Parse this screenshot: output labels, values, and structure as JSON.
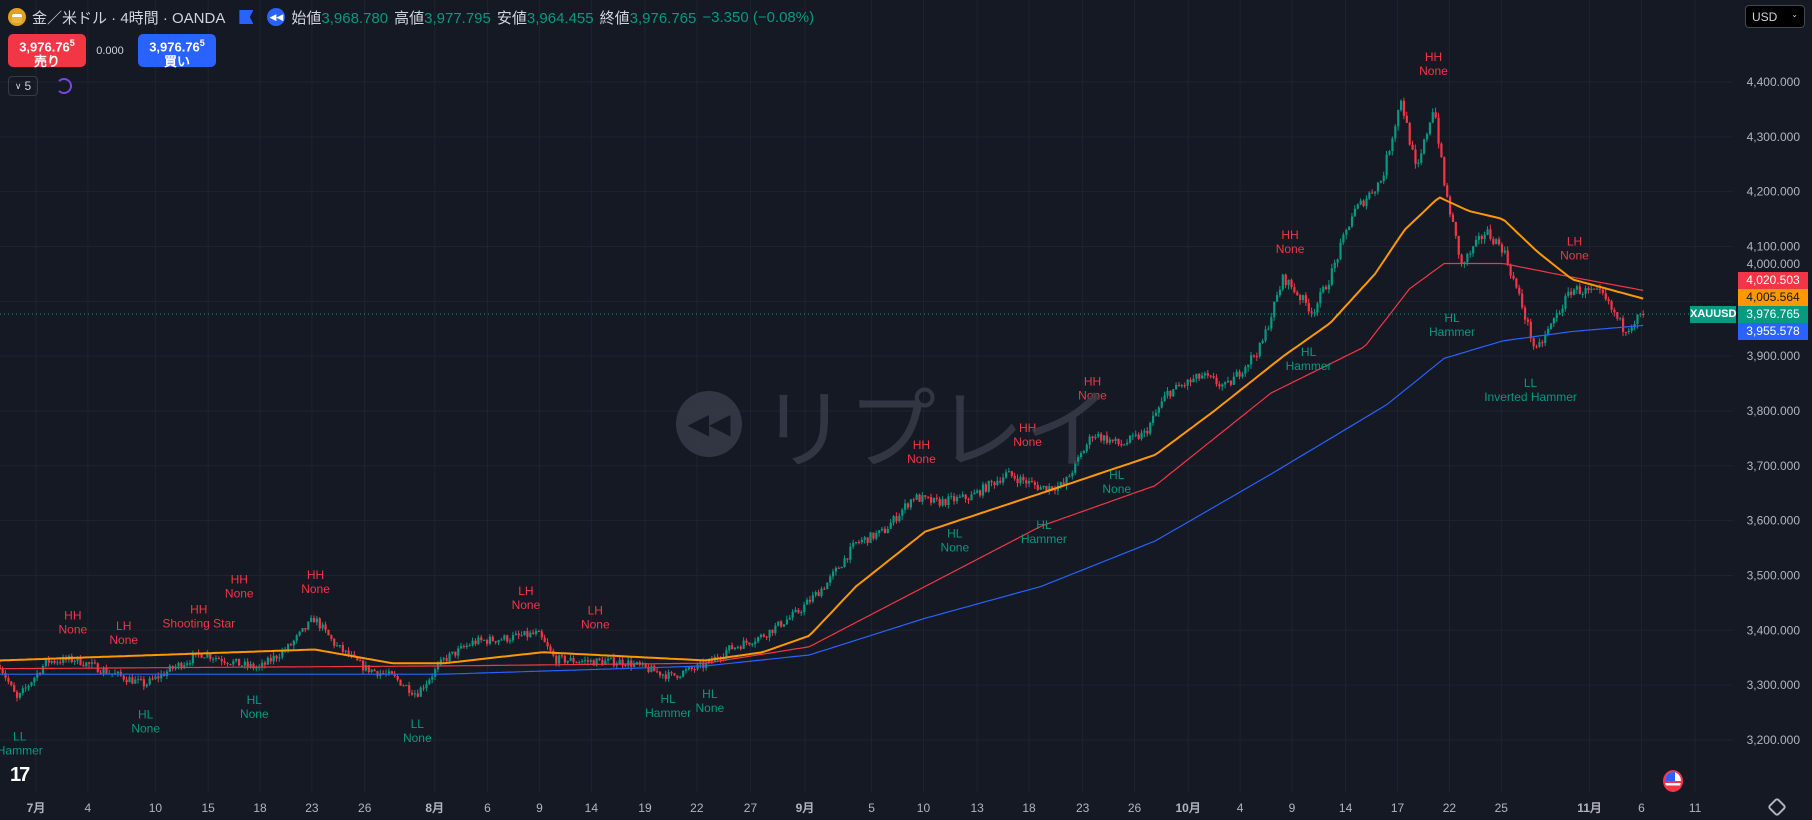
{
  "header": {
    "symbol_title": "金／米ドル · 4時間 · OANDA",
    "open_label": "始値",
    "open": "3,968.780",
    "high_label": "高値",
    "high": "3,977.795",
    "low_label": "安値",
    "low": "3,964.455",
    "close_label": "終値",
    "close": "3,976.765",
    "change": "−3.350 (−0.08%)"
  },
  "trade": {
    "sell_price": "3,976.76",
    "sell_sup": "5",
    "sell_label": "売り",
    "spread": "0.000",
    "buy_price": "3,976.76",
    "buy_sup": "5",
    "buy_label": "買い"
  },
  "indicator_count": "5",
  "currency": "USD",
  "watermark": "リプレイ",
  "price_labels": {
    "ma_red": "4,020.503",
    "ma_orange": "4,005.564",
    "last": "3,976.765",
    "symbol": "XAUUSD",
    "ma_blue": "3,955.578"
  },
  "colors": {
    "up": "#089981",
    "down": "#f23645",
    "ma_fast": "#ff9800",
    "ma_mid": "#f23645",
    "ma_slow": "#2962ff",
    "grid": "#1f2330"
  },
  "chart_data": {
    "type": "candlestick",
    "y_ticks": [
      4400,
      4300,
      4200,
      4100,
      4000,
      3900,
      3800,
      3700,
      3600,
      3500,
      3400,
      3300,
      3200
    ],
    "y_tick_labels": [
      "4,400.000",
      "4,300.000",
      "4,200.000",
      "4,100.000",
      "4,000.000",
      "3,900.000",
      "3,800.000",
      "3,700.000",
      "3,600.000",
      "3,500.000",
      "3,400.000",
      "3,300.000",
      "3,200.000"
    ],
    "x_ticks": [
      {
        "label": "7月",
        "day": 0
      },
      {
        "label": "4",
        "day": 3
      },
      {
        "label": "10",
        "day": 6.9
      },
      {
        "label": "15",
        "day": 9.95
      },
      {
        "label": "18",
        "day": 12.95
      },
      {
        "label": "23",
        "day": 15.95
      },
      {
        "label": "26",
        "day": 19
      },
      {
        "label": "8月",
        "day": 23.05
      },
      {
        "label": "6",
        "day": 26.1
      },
      {
        "label": "9",
        "day": 29.1
      },
      {
        "label": "14",
        "day": 32.1
      },
      {
        "label": "19",
        "day": 35.2
      },
      {
        "label": "22",
        "day": 38.2
      },
      {
        "label": "27",
        "day": 41.3
      },
      {
        "label": "9月",
        "day": 44.45
      },
      {
        "label": "5",
        "day": 48.3
      },
      {
        "label": "10",
        "day": 51.3
      },
      {
        "label": "13",
        "day": 54.4
      },
      {
        "label": "18",
        "day": 57.4
      },
      {
        "label": "23",
        "day": 60.5
      },
      {
        "label": "26",
        "day": 63.5
      },
      {
        "label": "10月",
        "day": 66.6
      },
      {
        "label": "4",
        "day": 69.6
      },
      {
        "label": "9",
        "day": 72.6
      },
      {
        "label": "14",
        "day": 75.7
      },
      {
        "label": "17",
        "day": 78.7
      },
      {
        "label": "22",
        "day": 81.7
      },
      {
        "label": "25",
        "day": 84.7
      },
      {
        "label": "11月",
        "day": 89.8
      },
      {
        "label": "6",
        "day": 92.8
      },
      {
        "label": "11",
        "day": 95.9
      }
    ],
    "price_path": [
      [
        -2.1,
        3337
      ],
      [
        -1.1,
        3274
      ],
      [
        0.6,
        3343
      ],
      [
        2.3,
        3347
      ],
      [
        3.9,
        3327
      ],
      [
        6.3,
        3301
      ],
      [
        7.9,
        3331
      ],
      [
        9.6,
        3358
      ],
      [
        11.9,
        3337
      ],
      [
        12.9,
        3331
      ],
      [
        14.6,
        3369
      ],
      [
        16.1,
        3422
      ],
      [
        17.3,
        3373
      ],
      [
        19.0,
        3331
      ],
      [
        20.6,
        3316
      ],
      [
        22.0,
        3284
      ],
      [
        23.6,
        3347
      ],
      [
        25.3,
        3379
      ],
      [
        27.3,
        3386
      ],
      [
        29.0,
        3394
      ],
      [
        30.0,
        3347
      ],
      [
        32.0,
        3343
      ],
      [
        34.0,
        3343
      ],
      [
        36.7,
        3316
      ],
      [
        38.7,
        3337
      ],
      [
        40.0,
        3365
      ],
      [
        42.0,
        3390
      ],
      [
        44.0,
        3432
      ],
      [
        45.7,
        3485
      ],
      [
        47.4,
        3559
      ],
      [
        49.0,
        3580
      ],
      [
        50.7,
        3643
      ],
      [
        52.0,
        3633
      ],
      [
        54.0,
        3643
      ],
      [
        56.1,
        3685
      ],
      [
        58.1,
        3660
      ],
      [
        59.4,
        3664
      ],
      [
        61.1,
        3759
      ],
      [
        62.7,
        3738
      ],
      [
        64.1,
        3759
      ],
      [
        65.4,
        3833
      ],
      [
        67.4,
        3864
      ],
      [
        68.8,
        3843
      ],
      [
        70.8,
        3917
      ],
      [
        72.1,
        4044
      ],
      [
        73.8,
        3981
      ],
      [
        74.8,
        4044
      ],
      [
        76.1,
        4160
      ],
      [
        77.8,
        4223
      ],
      [
        78.9,
        4370
      ],
      [
        79.8,
        4233
      ],
      [
        80.8,
        4360
      ],
      [
        81.4,
        4212
      ],
      [
        82.4,
        4065
      ],
      [
        83.8,
        4128
      ],
      [
        84.8,
        4096
      ],
      [
        85.8,
        4001
      ],
      [
        86.7,
        3906
      ],
      [
        87.8,
        3970
      ],
      [
        88.8,
        4023
      ],
      [
        90.5,
        4012
      ],
      [
        91.8,
        3949
      ],
      [
        92.9,
        3977
      ]
    ],
    "ma_fast": [
      [
        -2.1,
        3345
      ],
      [
        16.1,
        3365
      ],
      [
        20.6,
        3340
      ],
      [
        23.6,
        3340
      ],
      [
        29.3,
        3360
      ],
      [
        38.7,
        3345
      ],
      [
        42.0,
        3360
      ],
      [
        44.7,
        3390
      ],
      [
        47.4,
        3480
      ],
      [
        51.4,
        3580
      ],
      [
        58.1,
        3650
      ],
      [
        64.7,
        3720
      ],
      [
        68.1,
        3800
      ],
      [
        72.1,
        3900
      ],
      [
        74.8,
        3960
      ],
      [
        77.4,
        4050
      ],
      [
        79.1,
        4130
      ],
      [
        81.1,
        4190
      ],
      [
        82.8,
        4165
      ],
      [
        84.8,
        4150
      ],
      [
        86.8,
        4090
      ],
      [
        88.8,
        4040
      ],
      [
        92.9,
        4005
      ]
    ],
    "ma_mid": [
      [
        -2.1,
        3330
      ],
      [
        23.6,
        3335
      ],
      [
        38.7,
        3340
      ],
      [
        44.7,
        3370
      ],
      [
        51.4,
        3480
      ],
      [
        58.1,
        3590
      ],
      [
        64.7,
        3664
      ],
      [
        71.4,
        3833
      ],
      [
        76.8,
        3917
      ],
      [
        79.4,
        4023
      ],
      [
        81.4,
        4069
      ],
      [
        84.8,
        4069
      ],
      [
        88.8,
        4044
      ],
      [
        92.9,
        4020
      ]
    ],
    "ma_slow": [
      [
        -2.1,
        3320
      ],
      [
        23.6,
        3320
      ],
      [
        38.7,
        3335
      ],
      [
        44.7,
        3355
      ],
      [
        51.4,
        3422
      ],
      [
        58.1,
        3480
      ],
      [
        64.7,
        3563
      ],
      [
        71.4,
        3685
      ],
      [
        78.1,
        3812
      ],
      [
        81.4,
        3896
      ],
      [
        84.8,
        3928
      ],
      [
        88.8,
        3945
      ],
      [
        92.9,
        3956
      ]
    ],
    "last_price": 3976.765,
    "annotations": [
      {
        "l1": "LL",
        "l2": "Hammer",
        "day": -0.94,
        "price": 3206,
        "kind": "low"
      },
      {
        "l1": "HH",
        "l2": "None",
        "day": 2.13,
        "price": 3427,
        "kind": "high"
      },
      {
        "l1": "LH",
        "l2": "None",
        "day": 5.07,
        "price": 3408,
        "kind": "high"
      },
      {
        "l1": "HH",
        "l2": "Shooting Star",
        "day": 9.41,
        "price": 3438,
        "kind": "high"
      },
      {
        "l1": "HH",
        "l2": "None",
        "day": 11.75,
        "price": 3438,
        "kind": "high"
      },
      {
        "l1": "HL",
        "l2": "None",
        "day": 6.34,
        "price": 3246,
        "kind": "low"
      },
      {
        "l1": "HL",
        "l2": "None",
        "day": 12.62,
        "price": 3273,
        "kind": "low"
      },
      {
        "l1": "HH",
        "l2": "None",
        "day": 16.16,
        "price": 3501,
        "kind": "high"
      },
      {
        "l1": "LL",
        "l2": "None",
        "day": 22.04,
        "price": 3229,
        "kind": "low"
      },
      {
        "l1": "LH",
        "l2": "None",
        "day": 28.32,
        "price": 3472,
        "kind": "high"
      },
      {
        "l1": "LH",
        "l2": "None",
        "day": 32.33,
        "price": 3436,
        "kind": "high"
      },
      {
        "l1": "HL",
        "l2": "Hammer",
        "day": 36.54,
        "price": 3275,
        "kind": "low"
      },
      {
        "l1": "HL",
        "l2": "None",
        "day": 38.95,
        "price": 3284,
        "kind": "low"
      },
      {
        "l1": "HH",
        "l2": "None",
        "day": 51.18,
        "price": 3738,
        "kind": "high"
      },
      {
        "l1": "HL",
        "l2": "None",
        "day": 53.11,
        "price": 3577,
        "kind": "low"
      },
      {
        "l1": "HH",
        "l2": "None",
        "day": 57.32,
        "price": 3769,
        "kind": "high"
      },
      {
        "l1": "HL",
        "l2": "Hammer",
        "day": 58.26,
        "price": 3592,
        "kind": "low"
      },
      {
        "l1": "HH",
        "l2": "None",
        "day": 61.07,
        "price": 3854,
        "kind": "high"
      },
      {
        "l1": "HL",
        "l2": "None",
        "day": 62.47,
        "price": 3683,
        "kind": "low"
      },
      {
        "l1": "HH",
        "l2": "None",
        "day": 72.49,
        "price": 4121,
        "kind": "high"
      },
      {
        "l1": "HL",
        "l2": "Hammer",
        "day": 73.56,
        "price": 3908,
        "kind": "low"
      },
      {
        "l1": "HH",
        "l2": "None",
        "day": 80.78,
        "price": 4446,
        "kind": "high"
      },
      {
        "l1": "HL",
        "l2": "Hammer",
        "day": 81.85,
        "price": 3970,
        "kind": "low"
      },
      {
        "l1": "LH",
        "l2": "None",
        "day": 88.93,
        "price": 4109,
        "kind": "high"
      },
      {
        "l1": "LL",
        "l2": "Inverted Hammer",
        "day": 86.39,
        "price": 3851,
        "kind": "low"
      }
    ]
  }
}
